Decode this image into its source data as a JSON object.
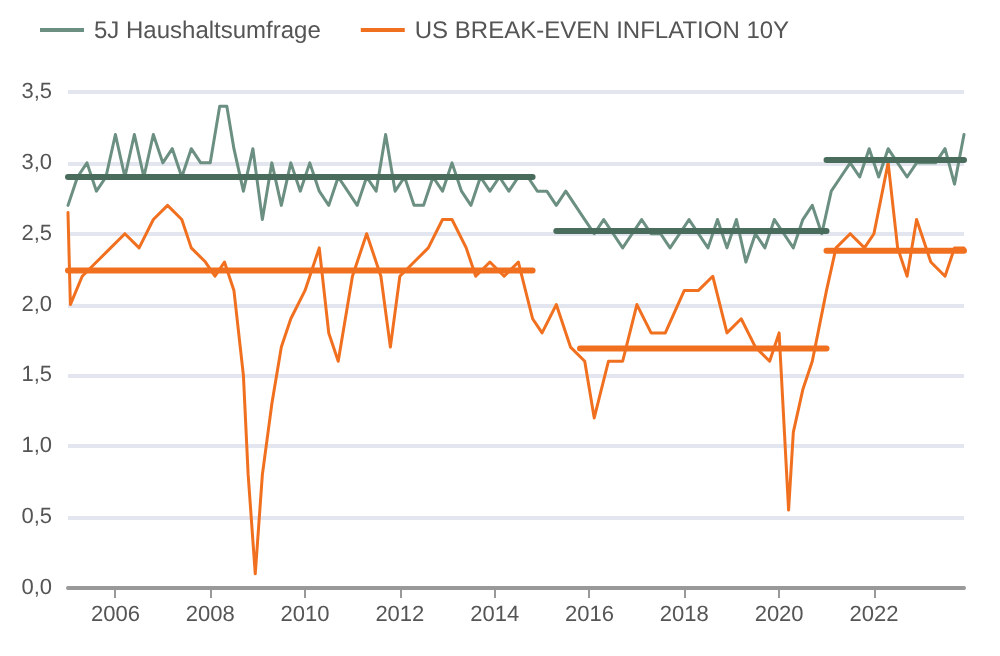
{
  "chart_data": {
    "type": "line",
    "legend": "top left",
    "grid": "y",
    "marker": "none",
    "line_style": "solid",
    "xlim": [
      2005,
      2023.9
    ],
    "xticks": [
      2006,
      2008,
      2010,
      2012,
      2014,
      2016,
      2018,
      2020,
      2022
    ],
    "ylim": [
      0,
      3.5
    ],
    "yticks": [
      {
        "value": 0,
        "label": "0,0"
      },
      {
        "value": 0.5,
        "label": "0,5"
      },
      {
        "value": 1,
        "label": "1,0"
      },
      {
        "value": 1.5,
        "label": "1,5"
      },
      {
        "value": 2,
        "label": "2,0"
      },
      {
        "value": 2.5,
        "label": "2,5"
      },
      {
        "value": 3,
        "label": "3,0"
      },
      {
        "value": 3.5,
        "label": "3,5"
      }
    ],
    "series": [
      {
        "name": "5J Haushaltsumfrage",
        "color": "#6b8f80",
        "x": [
          2005,
          2005.2,
          2005.4,
          2005.6,
          2005.8,
          2006,
          2006.2,
          2006.4,
          2006.6,
          2006.8,
          2007,
          2007.2,
          2007.4,
          2007.6,
          2007.8,
          2008,
          2008.2,
          2008.35,
          2008.5,
          2008.7,
          2008.9,
          2009.1,
          2009.3,
          2009.5,
          2009.7,
          2009.9,
          2010.1,
          2010.3,
          2010.5,
          2010.7,
          2010.9,
          2011.1,
          2011.3,
          2011.5,
          2011.7,
          2011.9,
          2012.1,
          2012.3,
          2012.5,
          2012.7,
          2012.9,
          2013.1,
          2013.3,
          2013.5,
          2013.7,
          2013.9,
          2014.1,
          2014.3,
          2014.5,
          2014.7,
          2014.9,
          2015.1,
          2015.3,
          2015.5,
          2015.7,
          2015.9,
          2016.1,
          2016.3,
          2016.5,
          2016.7,
          2016.9,
          2017.1,
          2017.3,
          2017.5,
          2017.7,
          2017.9,
          2018.1,
          2018.3,
          2018.5,
          2018.7,
          2018.9,
          2019.1,
          2019.3,
          2019.5,
          2019.7,
          2019.9,
          2020.1,
          2020.3,
          2020.5,
          2020.7,
          2020.9,
          2021.1,
          2021.3,
          2021.5,
          2021.7,
          2021.9,
          2022.1,
          2022.3,
          2022.5,
          2022.7,
          2022.9,
          2023.1,
          2023.3,
          2023.5,
          2023.7,
          2023.9
        ],
        "values": [
          2.7,
          2.9,
          3.0,
          2.8,
          2.9,
          3.2,
          2.9,
          3.2,
          2.9,
          3.2,
          3.0,
          3.1,
          2.9,
          3.1,
          3.0,
          3.0,
          3.4,
          3.4,
          3.1,
          2.8,
          3.1,
          2.6,
          3.0,
          2.7,
          3.0,
          2.8,
          3.0,
          2.8,
          2.7,
          2.9,
          2.8,
          2.7,
          2.9,
          2.8,
          3.2,
          2.8,
          2.9,
          2.7,
          2.7,
          2.9,
          2.8,
          3.0,
          2.8,
          2.7,
          2.9,
          2.8,
          2.9,
          2.8,
          2.9,
          2.9,
          2.8,
          2.8,
          2.7,
          2.8,
          2.7,
          2.6,
          2.5,
          2.6,
          2.5,
          2.4,
          2.5,
          2.6,
          2.5,
          2.5,
          2.4,
          2.5,
          2.6,
          2.5,
          2.4,
          2.6,
          2.4,
          2.6,
          2.3,
          2.5,
          2.4,
          2.6,
          2.5,
          2.4,
          2.6,
          2.7,
          2.5,
          2.8,
          2.9,
          3.0,
          2.9,
          3.1,
          2.9,
          3.1,
          3.0,
          2.9,
          3.0,
          3.0,
          3.0,
          3.1,
          2.85,
          3.2
        ]
      },
      {
        "name": "US BREAK-EVEN INFLATION 10Y",
        "color": "#f07020",
        "x": [
          2005,
          2005.05,
          2005.3,
          2005.6,
          2005.9,
          2006.2,
          2006.5,
          2006.8,
          2007.1,
          2007.4,
          2007.6,
          2007.9,
          2008.1,
          2008.3,
          2008.5,
          2008.7,
          2008.8,
          2008.95,
          2009.1,
          2009.3,
          2009.5,
          2009.7,
          2010,
          2010.3,
          2010.5,
          2010.7,
          2011,
          2011.3,
          2011.6,
          2011.8,
          2012,
          2012.3,
          2012.6,
          2012.9,
          2013.1,
          2013.4,
          2013.6,
          2013.9,
          2014.2,
          2014.5,
          2014.8,
          2015,
          2015.3,
          2015.6,
          2015.9,
          2016.1,
          2016.4,
          2016.7,
          2017,
          2017.3,
          2017.6,
          2018,
          2018.3,
          2018.6,
          2018.9,
          2019.2,
          2019.5,
          2019.8,
          2020,
          2020.2,
          2020.3,
          2020.5,
          2020.7,
          2021,
          2021.2,
          2021.5,
          2021.8,
          2022,
          2022.3,
          2022.5,
          2022.7,
          2022.9,
          2023.2,
          2023.5,
          2023.7,
          2023.9
        ],
        "values": [
          2.65,
          2.0,
          2.2,
          2.3,
          2.4,
          2.5,
          2.4,
          2.6,
          2.7,
          2.6,
          2.4,
          2.3,
          2.2,
          2.3,
          2.1,
          1.5,
          0.8,
          0.1,
          0.8,
          1.3,
          1.7,
          1.9,
          2.1,
          2.4,
          1.8,
          1.6,
          2.2,
          2.5,
          2.2,
          1.7,
          2.2,
          2.3,
          2.4,
          2.6,
          2.6,
          2.4,
          2.2,
          2.3,
          2.2,
          2.3,
          1.9,
          1.8,
          2.0,
          1.7,
          1.6,
          1.2,
          1.6,
          1.6,
          2.0,
          1.8,
          1.8,
          2.1,
          2.1,
          2.2,
          1.8,
          1.9,
          1.7,
          1.6,
          1.8,
          0.55,
          1.1,
          1.4,
          1.6,
          2.1,
          2.4,
          2.5,
          2.4,
          2.5,
          3.0,
          2.4,
          2.2,
          2.6,
          2.3,
          2.2,
          2.4,
          2.4
        ]
      },
      {
        "color": "#4a6c5c",
        "x": [
          2005,
          2014.8
        ],
        "values": [
          2.9,
          2.9
        ]
      },
      {
        "color": "#4a6c5c",
        "x": [
          2015.3,
          2021
        ],
        "values": [
          2.52,
          2.52
        ]
      },
      {
        "color": "#4a6c5c",
        "x": [
          2021,
          2023.9
        ],
        "values": [
          3.02,
          3.02
        ]
      },
      {
        "color": "#f07020",
        "x": [
          2005,
          2014.8
        ],
        "values": [
          2.24,
          2.24
        ]
      },
      {
        "color": "#f07020",
        "x": [
          2015.8,
          2021
        ],
        "values": [
          1.69,
          1.69
        ]
      },
      {
        "color": "#f07020",
        "x": [
          2021,
          2023.9
        ],
        "values": [
          2.38,
          2.38
        ]
      }
    ]
  }
}
